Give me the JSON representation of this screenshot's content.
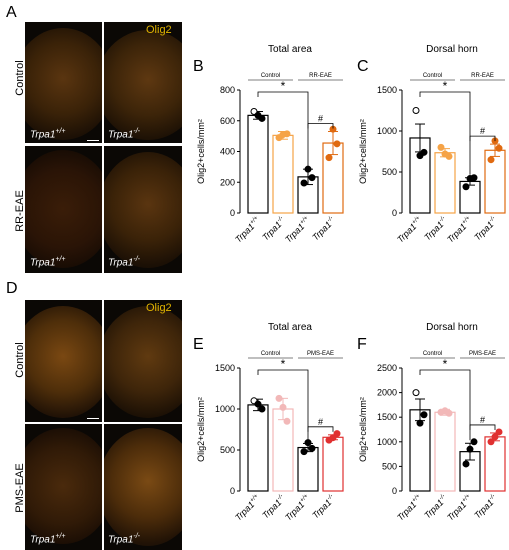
{
  "panels": {
    "A": "A",
    "B": "B",
    "C": "C",
    "D": "D",
    "E": "E",
    "F": "F"
  },
  "micrographs": {
    "top": {
      "marker": "Olig2",
      "row_labels": [
        "Control",
        "RR-EAE"
      ],
      "col_labels": [
        "Trpa1+/+",
        "Trpa1-/-"
      ]
    },
    "bottom": {
      "marker": "Olig2",
      "row_labels": [
        "Control",
        "PMS-EAE"
      ],
      "col_labels": [
        "Trpa1+/+",
        "Trpa1-/-"
      ]
    }
  },
  "chart_data": [
    {
      "id": "B",
      "type": "bar",
      "title": "Total area",
      "ylabel": "Olig2+cells/mm²",
      "ylim": [
        0,
        800
      ],
      "yticks": [
        "0",
        "200",
        "400",
        "600",
        "800"
      ],
      "yticks_values": [
        0,
        200,
        400,
        600,
        800
      ],
      "groups": [
        "Control",
        "RR-EAE"
      ],
      "categories": [
        "Trpa1+/+",
        "Trpa1-/-",
        "Trpa1+/+",
        "Trpa1-/-"
      ],
      "values": [
        635,
        505,
        235,
        455
      ],
      "errors": [
        25,
        25,
        50,
        75
      ],
      "points": [
        [
          660,
          615,
          635
        ],
        [
          490,
          515,
          510
        ],
        [
          195,
          230,
          285
        ],
        [
          360,
          450,
          545
        ]
      ],
      "colors": [
        "#000000",
        "#f5a347",
        "#000000",
        "#e06a10"
      ],
      "significance": [
        {
          "label": "*",
          "from": 0,
          "to": 2
        },
        {
          "label": "#",
          "from": 2,
          "to": 3
        }
      ]
    },
    {
      "id": "C",
      "type": "bar",
      "title": "Dorsal horn",
      "ylabel": "Olig2+cells/mm²",
      "ylim": [
        0,
        1500
      ],
      "yticks": [
        "0",
        "500",
        "1000",
        "1500"
      ],
      "yticks_values": [
        0,
        500,
        1000,
        1500
      ],
      "groups": [
        "Control",
        "RR-EAE"
      ],
      "categories": [
        "Trpa1+/+",
        "Trpa1-/-",
        "Trpa1+/+",
        "Trpa1-/-"
      ],
      "values": [
        915,
        735,
        385,
        765
      ],
      "errors": [
        170,
        50,
        45,
        75
      ],
      "points": [
        [
          1250,
          740,
          700
        ],
        [
          800,
          690,
          720
        ],
        [
          320,
          430,
          420
        ],
        [
          650,
          790,
          880
        ]
      ],
      "colors": [
        "#000000",
        "#f5a347",
        "#000000",
        "#e06a10"
      ],
      "significance": [
        {
          "label": "*",
          "from": 0,
          "to": 2
        },
        {
          "label": "#",
          "from": 2,
          "to": 3
        }
      ]
    },
    {
      "id": "E",
      "type": "bar",
      "title": "Total area",
      "ylabel": "Olig2+cells/mm²",
      "ylim": [
        0,
        1500
      ],
      "yticks": [
        "0",
        "500",
        "1000",
        "1500"
      ],
      "yticks_values": [
        0,
        500,
        1000,
        1500
      ],
      "groups": [
        "Control",
        "PMS-EAE"
      ],
      "categories": [
        "Trpa1+/+",
        "Trpa1-/-",
        "Trpa1+/+",
        "Trpa1-/-"
      ],
      "values": [
        1050,
        1000,
        530,
        655
      ],
      "errors": [
        70,
        130,
        50,
        30
      ],
      "points": [
        [
          1100,
          1000,
          1060
        ],
        [
          1130,
          850,
          1020
        ],
        [
          480,
          520,
          590
        ],
        [
          620,
          700,
          650
        ]
      ],
      "colors": [
        "#000000",
        "#f2b8b8",
        "#000000",
        "#e03030"
      ],
      "significance": [
        {
          "label": "*",
          "from": 0,
          "to": 2
        },
        {
          "label": "#",
          "from": 2,
          "to": 3
        }
      ]
    },
    {
      "id": "F",
      "type": "bar",
      "title": "Dorsal horn",
      "ylabel": "Olig2+cells/mm²",
      "ylim": [
        0,
        2500
      ],
      "yticks": [
        "0",
        "500",
        "1000",
        "1500",
        "2000",
        "2500"
      ],
      "yticks_values": [
        0,
        500,
        1000,
        1500,
        2000,
        2500
      ],
      "groups": [
        "Control",
        "PMS-EAE"
      ],
      "categories": [
        "Trpa1+/+",
        "Trpa1-/-",
        "Trpa1+/+",
        "Trpa1-/-"
      ],
      "values": [
        1650,
        1600,
        800,
        1100
      ],
      "errors": [
        220,
        60,
        170,
        80
      ],
      "points": [
        [
          2000,
          1550,
          1380
        ],
        [
          1600,
          1580,
          1630
        ],
        [
          550,
          1000,
          850
        ],
        [
          1000,
          1200,
          1100
        ]
      ],
      "colors": [
        "#000000",
        "#f2b8b8",
        "#000000",
        "#e03030"
      ],
      "significance": [
        {
          "label": "*",
          "from": 0,
          "to": 2
        },
        {
          "label": "#",
          "from": 2,
          "to": 3
        }
      ]
    }
  ]
}
